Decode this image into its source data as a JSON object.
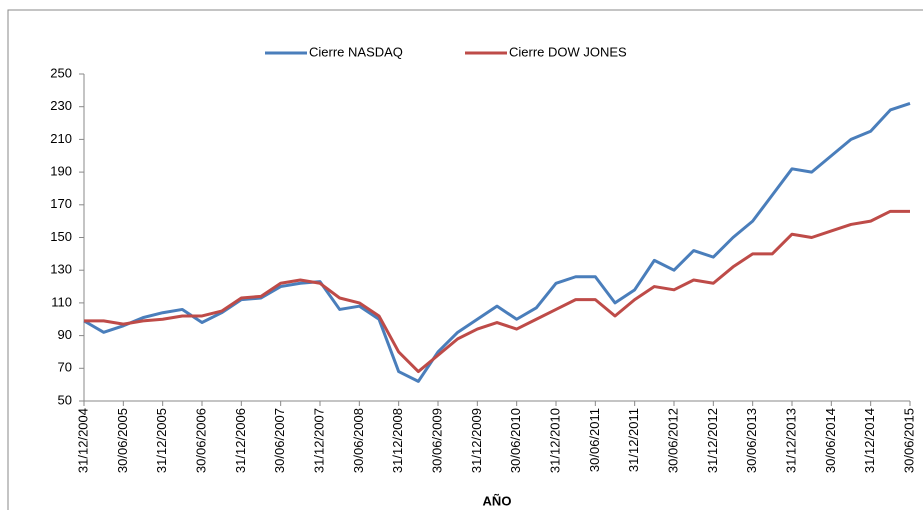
{
  "chart_data": {
    "type": "line",
    "x_label": "AÑO",
    "categories": [
      "31/12/2004",
      null,
      "30/06/2005",
      null,
      "31/12/2005",
      null,
      "30/06/2006",
      null,
      "31/12/2006",
      null,
      "30/06/2007",
      null,
      "31/12/2007",
      null,
      "30/06/2008",
      null,
      "31/12/2008",
      null,
      "30/06/2009",
      null,
      "31/12/2009",
      null,
      "30/06/2010",
      null,
      "31/12/2010",
      null,
      "30/06/2011",
      null,
      "31/12/2011",
      null,
      "30/06/2012",
      null,
      "31/12/2012",
      null,
      "30/06/2013",
      null,
      "31/12/2013",
      null,
      "30/06/2014",
      null,
      "31/12/2014",
      null,
      "30/06/2015"
    ],
    "series": [
      {
        "name": "Cierre NASDAQ",
        "color": "#4a7ebb",
        "values": [
          99,
          92,
          96,
          101,
          104,
          106,
          98,
          104,
          112,
          113,
          120,
          122,
          123,
          106,
          108,
          100,
          68,
          62,
          80,
          92,
          100,
          108,
          100,
          107,
          122,
          126,
          126,
          110,
          118,
          136,
          130,
          142,
          138,
          150,
          160,
          176,
          192,
          190,
          200,
          210,
          215,
          228,
          232
        ]
      },
      {
        "name": "Cierre DOW JONES",
        "color": "#be4b48",
        "values": [
          99,
          99,
          97,
          99,
          100,
          102,
          102,
          105,
          113,
          114,
          122,
          124,
          122,
          113,
          110,
          102,
          80,
          68,
          78,
          88,
          94,
          98,
          94,
          100,
          106,
          112,
          112,
          102,
          112,
          120,
          118,
          124,
          122,
          132,
          140,
          140,
          152,
          150,
          154,
          158,
          160,
          166,
          166
        ]
      }
    ],
    "ylim": [
      50,
      250
    ],
    "yticks": [
      50,
      70,
      90,
      110,
      130,
      150,
      170,
      190,
      210,
      230,
      250
    ],
    "grid": false,
    "legend": "top"
  }
}
